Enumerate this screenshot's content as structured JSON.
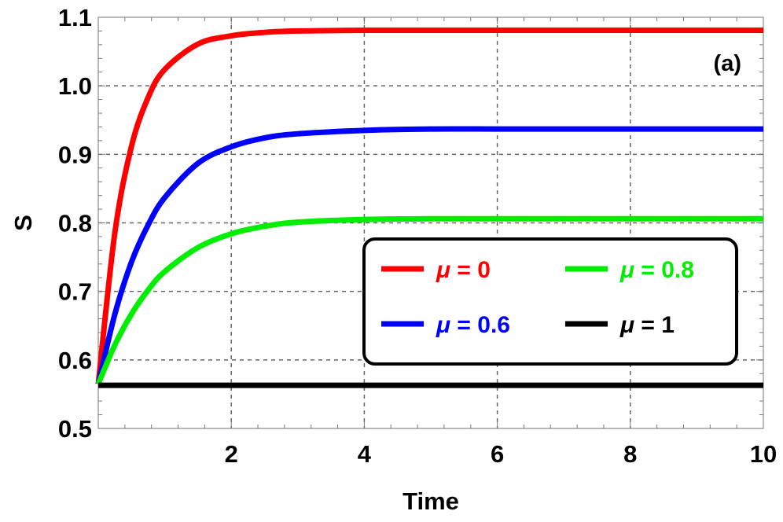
{
  "chart_data": {
    "type": "line",
    "title": "",
    "panel_label": "(a)",
    "xlabel": "Time",
    "ylabel": "S",
    "xlim": [
      0,
      10
    ],
    "ylim": [
      0.5,
      1.1
    ],
    "x_ticks": [
      2,
      4,
      6,
      8,
      10
    ],
    "x_tick_labels": [
      "2",
      "4",
      "6",
      "8",
      "10"
    ],
    "y_ticks": [
      0.5,
      0.6,
      0.7,
      0.8,
      0.9,
      1.0,
      1.1
    ],
    "y_tick_labels": [
      "0.5",
      "0.6",
      "0.7",
      "0.8",
      "0.9",
      "1.0",
      "1.1"
    ],
    "grid": true,
    "legend_position": "center-right",
    "x": [
      0,
      0.25,
      0.5,
      0.75,
      1,
      1.5,
      2,
      2.5,
      3,
      4,
      5,
      6,
      7,
      8,
      10
    ],
    "series": [
      {
        "name": "μ = 0",
        "name_parts": [
          "μ",
          " = 0"
        ],
        "color": "#ff0000",
        "values": [
          0.565,
          0.786,
          0.912,
          0.983,
          1.024,
          1.061,
          1.073,
          1.078,
          1.08,
          1.081,
          1.081,
          1.081,
          1.081,
          1.081,
          1.081
        ]
      },
      {
        "name": "μ = 0.6",
        "name_parts": [
          "μ",
          " = 0.6"
        ],
        "color": "#0000ff",
        "values": [
          0.565,
          0.667,
          0.743,
          0.797,
          0.837,
          0.887,
          0.911,
          0.924,
          0.93,
          0.935,
          0.937,
          0.937,
          0.937,
          0.937,
          0.937
        ]
      },
      {
        "name": "μ = 0.8",
        "name_parts": [
          "μ",
          " = 0.8"
        ],
        "color": "#00ee00",
        "values": [
          0.565,
          0.622,
          0.667,
          0.702,
          0.729,
          0.764,
          0.784,
          0.795,
          0.801,
          0.805,
          0.806,
          0.806,
          0.806,
          0.806,
          0.806
        ]
      },
      {
        "name": "μ = 1",
        "name_parts": [
          "μ",
          " = 1"
        ],
        "color": "#000000",
        "values": [
          0.563,
          0.563,
          0.563,
          0.563,
          0.563,
          0.563,
          0.563,
          0.563,
          0.563,
          0.563,
          0.563,
          0.563,
          0.563,
          0.563,
          0.563
        ]
      }
    ]
  }
}
